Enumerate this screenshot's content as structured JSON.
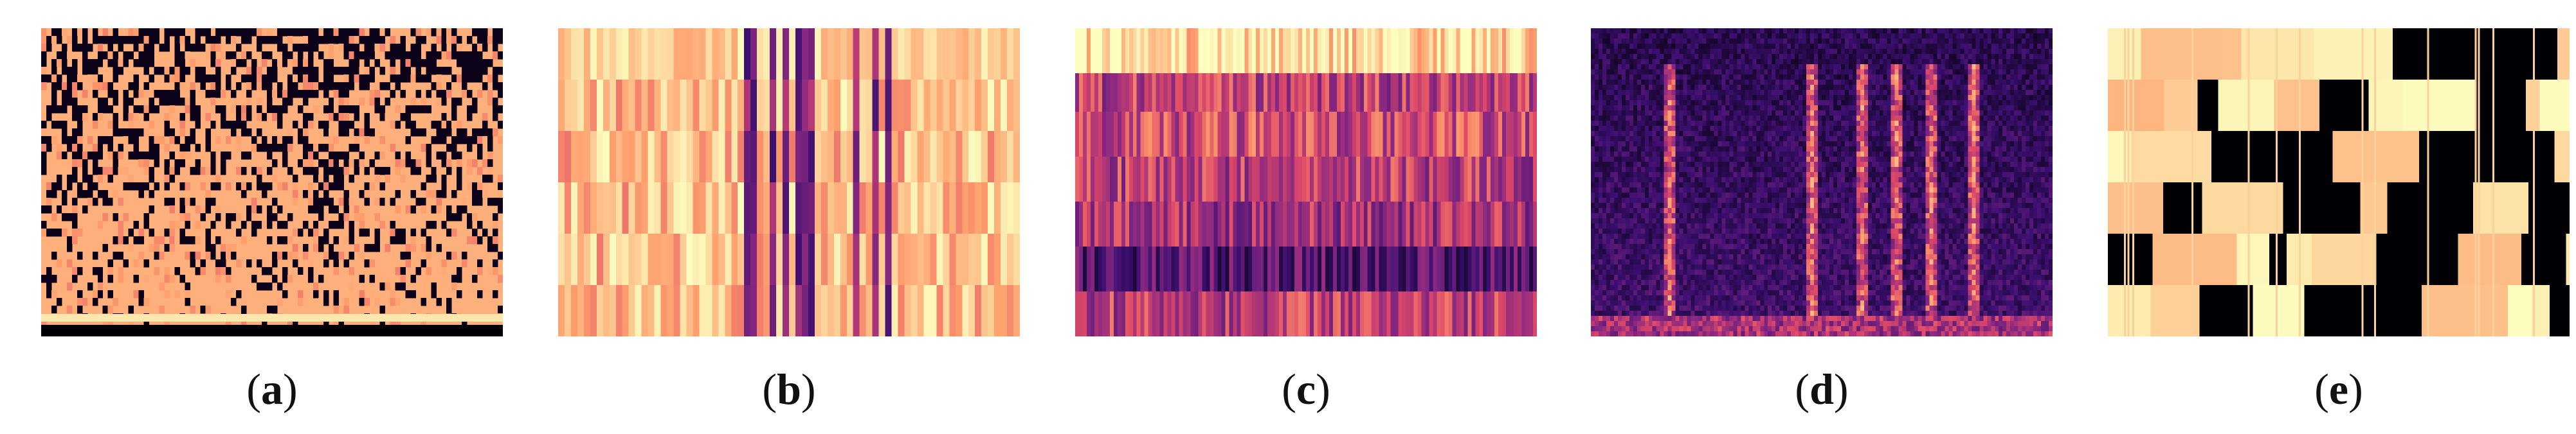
{
  "panels": [
    {
      "id": "a",
      "label": "a",
      "colormap": "magma",
      "style": "sparse-dark-patches"
    },
    {
      "id": "b",
      "label": "b",
      "colormap": "magma",
      "style": "vertical-bands-bright"
    },
    {
      "id": "c",
      "label": "c",
      "colormap": "magma",
      "style": "horizontal-bands"
    },
    {
      "id": "d",
      "label": "d",
      "colormap": "magma",
      "style": "dark-spectrogram-with-harmonics"
    },
    {
      "id": "e",
      "label": "e",
      "colormap": "magma",
      "style": "block-mask"
    }
  ],
  "colors": {
    "black": "#000004",
    "purple": "#51127c",
    "magenta": "#b73779",
    "orange": "#fc8961",
    "pale": "#fcfdbf"
  }
}
